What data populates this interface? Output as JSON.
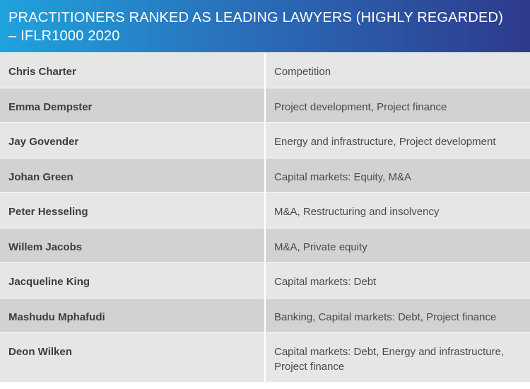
{
  "table": {
    "title_line1": "PRACTITIONERS RANKED AS LEADING LAWYERS (HIGHLY REGARDED)",
    "title_line2": "– IFLR1000 2020",
    "rows": [
      {
        "name": "Chris Charter",
        "area": "Competition"
      },
      {
        "name": "Emma Dempster",
        "area": "Project development, Project finance"
      },
      {
        "name": "Jay Govender",
        "area": "Energy and infrastructure, Project development"
      },
      {
        "name": "Johan Green",
        "area": "Capital markets: Equity, M&A"
      },
      {
        "name": "Peter Hesseling",
        "area": "M&A, Restructuring and insolvency"
      },
      {
        "name": "Willem Jacobs",
        "area": "M&A, Private equity"
      },
      {
        "name": "Jacqueline King",
        "area": "Capital markets: Debt"
      },
      {
        "name": "Mashudu Mphafudi",
        "area": "Banking, Capital markets: Debt, Project finance"
      },
      {
        "name": "Deon Wilken",
        "area_line1": "Capital markets: Debt, Energy and infrastructure,",
        "area_line2": "Project finance"
      }
    ]
  },
  "colors": {
    "header_gradient_start": "#1fa3dc",
    "header_gradient_end": "#2e3a8c",
    "row_light": "#e6e6e6",
    "row_dark": "#d2d2d2"
  }
}
